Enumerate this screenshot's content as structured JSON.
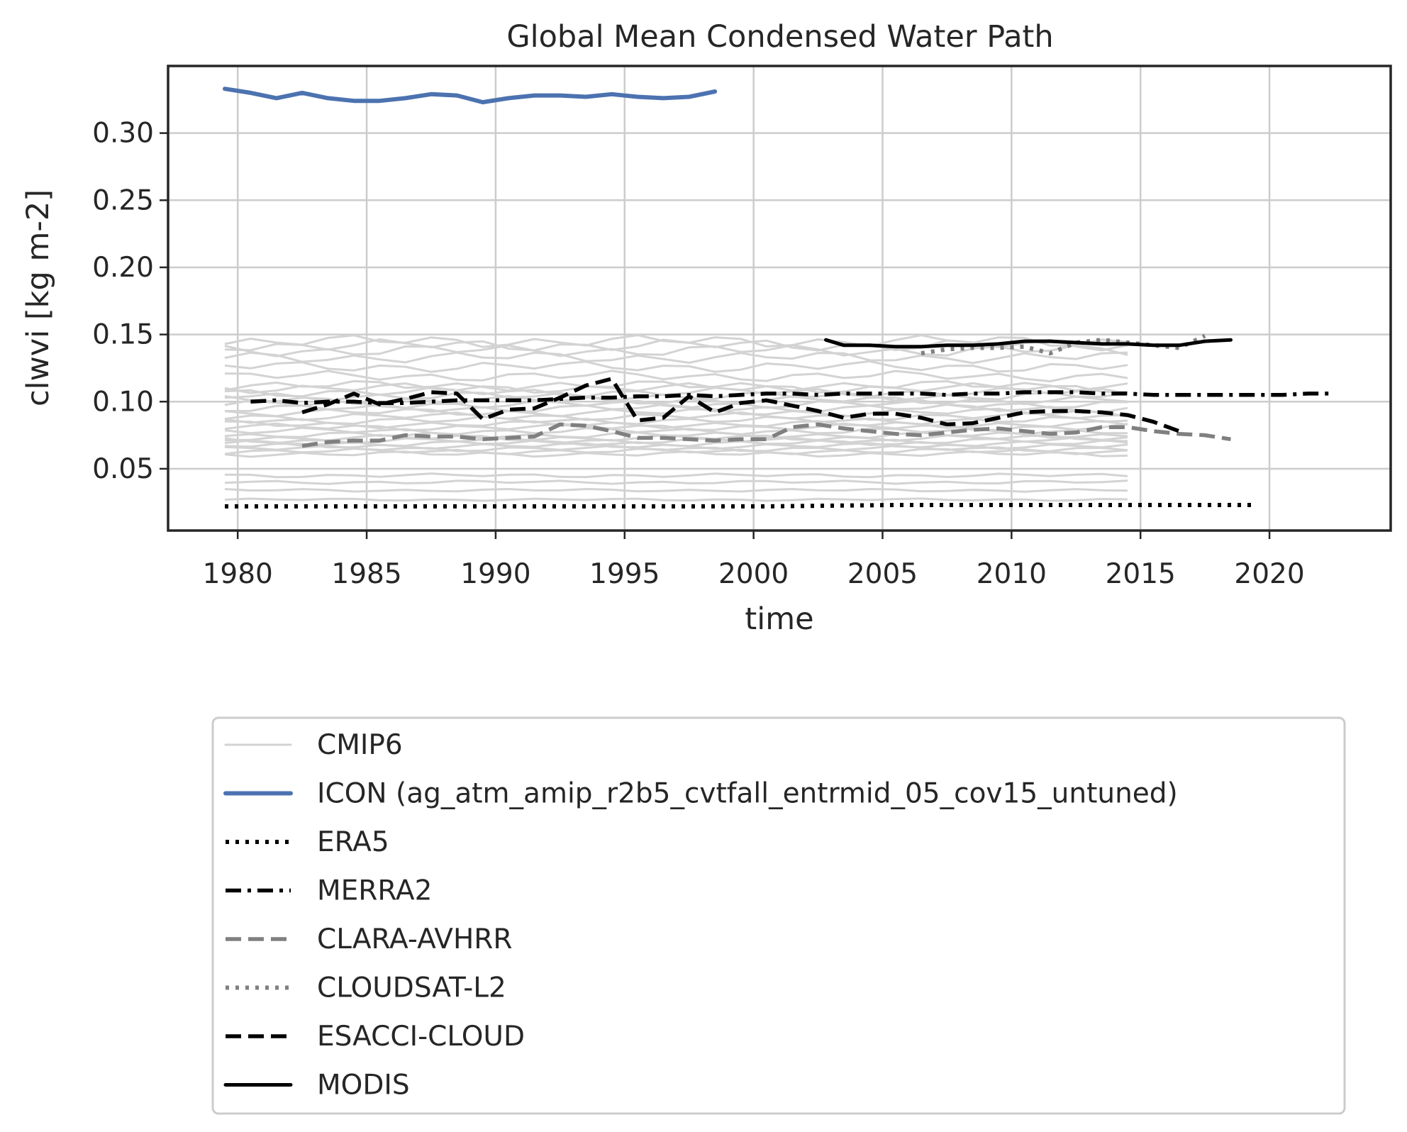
{
  "chart_data": {
    "type": "line",
    "title": "Global Mean Condensed Water Path",
    "xlabel": "time",
    "ylabel": "clwvi [kg m-2]",
    "xlim": [
      1977.3,
      2024.7
    ],
    "ylim": [
      0.004,
      0.35
    ],
    "xticks": [
      "1980",
      "1985",
      "1990",
      "1995",
      "2000",
      "2005",
      "2010",
      "2015",
      "2020"
    ],
    "yticks": [
      "0.05",
      "0.10",
      "0.15",
      "0.20",
      "0.25",
      "0.30"
    ],
    "grid": true,
    "legend_position": "below",
    "cmip6_ensemble": {
      "name": "CMIP6",
      "color": "#d3d3d3",
      "x_range": [
        1979.5,
        2014.5
      ],
      "levels": [
        0.027,
        0.034,
        0.04,
        0.045,
        0.061,
        0.063,
        0.065,
        0.067,
        0.069,
        0.071,
        0.073,
        0.075,
        0.078,
        0.081,
        0.083,
        0.086,
        0.089,
        0.092,
        0.095,
        0.098,
        0.101,
        0.104,
        0.107,
        0.11,
        0.112,
        0.119,
        0.126,
        0.133,
        0.138,
        0.142,
        0.145
      ]
    },
    "series": [
      {
        "name": "ICON (ag_atm_amip_r2b5_cvtfall_entrmid_05_cov15_untuned)",
        "color": "#4c72b0",
        "style": "solid",
        "x": [
          1979.5,
          1980.5,
          1981.5,
          1982.5,
          1983.5,
          1984.5,
          1985.5,
          1986.5,
          1987.5,
          1988.5,
          1989.5,
          1990.5,
          1991.5,
          1992.5,
          1993.5,
          1994.5,
          1995.5,
          1996.5,
          1997.5,
          1998.5
        ],
        "y": [
          0.333,
          0.33,
          0.326,
          0.33,
          0.326,
          0.324,
          0.324,
          0.326,
          0.329,
          0.328,
          0.323,
          0.326,
          0.328,
          0.328,
          0.327,
          0.329,
          0.327,
          0.326,
          0.327,
          0.331
        ]
      },
      {
        "name": "ERA5",
        "color": "#000000",
        "style": "dotted",
        "x": [
          1979.5,
          1985.5,
          1990.5,
          1995.5,
          2000.5,
          2005.5,
          2010.5,
          2015.5,
          2019.5
        ],
        "y": [
          0.022,
          0.022,
          0.022,
          0.022,
          0.022,
          0.023,
          0.023,
          0.023,
          0.023
        ]
      },
      {
        "name": "MERRA2",
        "color": "#000000",
        "style": "dashdot",
        "x": [
          1980.5,
          1981.5,
          1982.5,
          1983.5,
          1984.5,
          1985.5,
          1986.5,
          1987.5,
          1988.5,
          1989.5,
          1990.5,
          1991.5,
          1992.5,
          1993.5,
          1994.5,
          1995.5,
          1996.5,
          1997.5,
          1998.5,
          1999.5,
          2000.5,
          2001.5,
          2002.5,
          2003.5,
          2004.5,
          2005.5,
          2006.5,
          2007.5,
          2008.5,
          2009.5,
          2010.5,
          2011.5,
          2012.5,
          2013.5,
          2014.5,
          2015.5,
          2016.5,
          2017.5,
          2018.5,
          2019.5,
          2020.5,
          2021.5,
          2022.5
        ],
        "y": [
          0.1,
          0.101,
          0.099,
          0.1,
          0.1,
          0.099,
          0.099,
          0.1,
          0.101,
          0.101,
          0.101,
          0.101,
          0.102,
          0.103,
          0.103,
          0.104,
          0.104,
          0.105,
          0.104,
          0.105,
          0.106,
          0.106,
          0.105,
          0.106,
          0.106,
          0.106,
          0.106,
          0.105,
          0.106,
          0.106,
          0.107,
          0.107,
          0.107,
          0.106,
          0.106,
          0.105,
          0.105,
          0.105,
          0.105,
          0.105,
          0.105,
          0.106,
          0.106
        ]
      },
      {
        "name": "CLARA-AVHRR",
        "color": "#808080",
        "style": "dashed",
        "x": [
          1982.5,
          1983.5,
          1984.5,
          1985.5,
          1986.5,
          1987.5,
          1988.5,
          1989.5,
          1990.5,
          1991.5,
          1992.5,
          1993.5,
          1994.5,
          1995.5,
          1996.5,
          1997.5,
          1998.5,
          1999.5,
          2000.5,
          2001.5,
          2002.5,
          2003.5,
          2004.5,
          2005.5,
          2006.5,
          2007.5,
          2008.5,
          2009.5,
          2010.5,
          2011.5,
          2012.5,
          2013.5,
          2014.5,
          2015.5,
          2016.5,
          2017.5,
          2018.5
        ],
        "y": [
          0.067,
          0.07,
          0.071,
          0.071,
          0.075,
          0.074,
          0.074,
          0.072,
          0.073,
          0.074,
          0.083,
          0.082,
          0.078,
          0.073,
          0.073,
          0.072,
          0.071,
          0.072,
          0.072,
          0.081,
          0.083,
          0.08,
          0.078,
          0.076,
          0.075,
          0.077,
          0.079,
          0.08,
          0.078,
          0.076,
          0.077,
          0.081,
          0.081,
          0.078,
          0.076,
          0.075,
          0.072
        ]
      },
      {
        "name": "CLOUDSAT-L2",
        "color": "#808080",
        "style": "dotted",
        "x": [
          2006.5,
          2007.5,
          2008.5,
          2009.5,
          2010.5,
          2011.5,
          2012.5,
          2013.5,
          2014.5,
          2015.5,
          2016.5,
          2017.5
        ],
        "y": [
          0.136,
          0.139,
          0.14,
          0.14,
          0.141,
          0.136,
          0.144,
          0.146,
          0.144,
          0.142,
          0.14,
          0.149
        ]
      },
      {
        "name": "ESACCI-CLOUD",
        "color": "#000000",
        "style": "dashed",
        "x": [
          1982.5,
          1983.5,
          1984.5,
          1985.5,
          1986.5,
          1987.5,
          1988.5,
          1989.5,
          1990.5,
          1991.5,
          1992.5,
          1993.5,
          1994.5,
          1995.5,
          1996.5,
          1997.5,
          1998.5,
          1999.5,
          2000.5,
          2001.5,
          2002.5,
          2003.5,
          2004.5,
          2005.5,
          2006.5,
          2007.5,
          2008.5,
          2009.5,
          2010.5,
          2011.5,
          2012.5,
          2013.5,
          2014.5,
          2015.5,
          2016.5
        ],
        "y": [
          0.092,
          0.098,
          0.106,
          0.098,
          0.102,
          0.107,
          0.106,
          0.087,
          0.094,
          0.095,
          0.103,
          0.112,
          0.117,
          0.086,
          0.088,
          0.104,
          0.092,
          0.099,
          0.101,
          0.097,
          0.093,
          0.088,
          0.091,
          0.091,
          0.088,
          0.083,
          0.084,
          0.088,
          0.092,
          0.093,
          0.093,
          0.092,
          0.09,
          0.085,
          0.078
        ]
      },
      {
        "name": "MODIS",
        "color": "#000000",
        "style": "solid",
        "x": [
          2002.8,
          2003.5,
          2004.5,
          2005.5,
          2006.5,
          2007.5,
          2008.5,
          2009.5,
          2010.5,
          2011.5,
          2012.5,
          2013.5,
          2014.5,
          2015.5,
          2016.5,
          2017.5,
          2018.5
        ],
        "y": [
          0.146,
          0.142,
          0.142,
          0.141,
          0.141,
          0.142,
          0.142,
          0.143,
          0.145,
          0.145,
          0.144,
          0.143,
          0.143,
          0.142,
          0.142,
          0.145,
          0.146
        ]
      }
    ]
  }
}
